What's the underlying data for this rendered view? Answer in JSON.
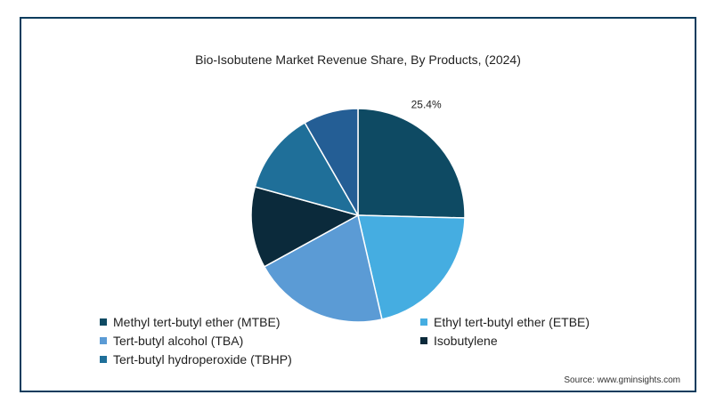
{
  "chart_data": {
    "type": "pie",
    "title": "Bio-Isobutene Market Revenue Share, By Products, (2024)",
    "slices": [
      {
        "name": "Methyl tert-butyl ether (MTBE)",
        "value": 25.4,
        "color": "#0e4a63",
        "data_label": "25.4%"
      },
      {
        "name": "Ethyl tert-butyl ether (ETBE)",
        "value": 21.0,
        "color": "#45ade1",
        "data_label": ""
      },
      {
        "name": "Tert-butyl alcohol (TBA)",
        "value": 20.6,
        "color": "#5b9bd5",
        "data_label": ""
      },
      {
        "name": "Isobutylene",
        "value": 12.3,
        "color": "#0b2a3b",
        "data_label": ""
      },
      {
        "name": "Tert-butyl hydroperoxide (TBHP)",
        "value": 12.4,
        "color": "#1f6f99",
        "data_label": ""
      },
      {
        "name": "",
        "value": 8.3,
        "color": "#245e95",
        "data_label": ""
      }
    ],
    "legend_placement": "bottom"
  },
  "source": "Source: www.gminsights.com"
}
